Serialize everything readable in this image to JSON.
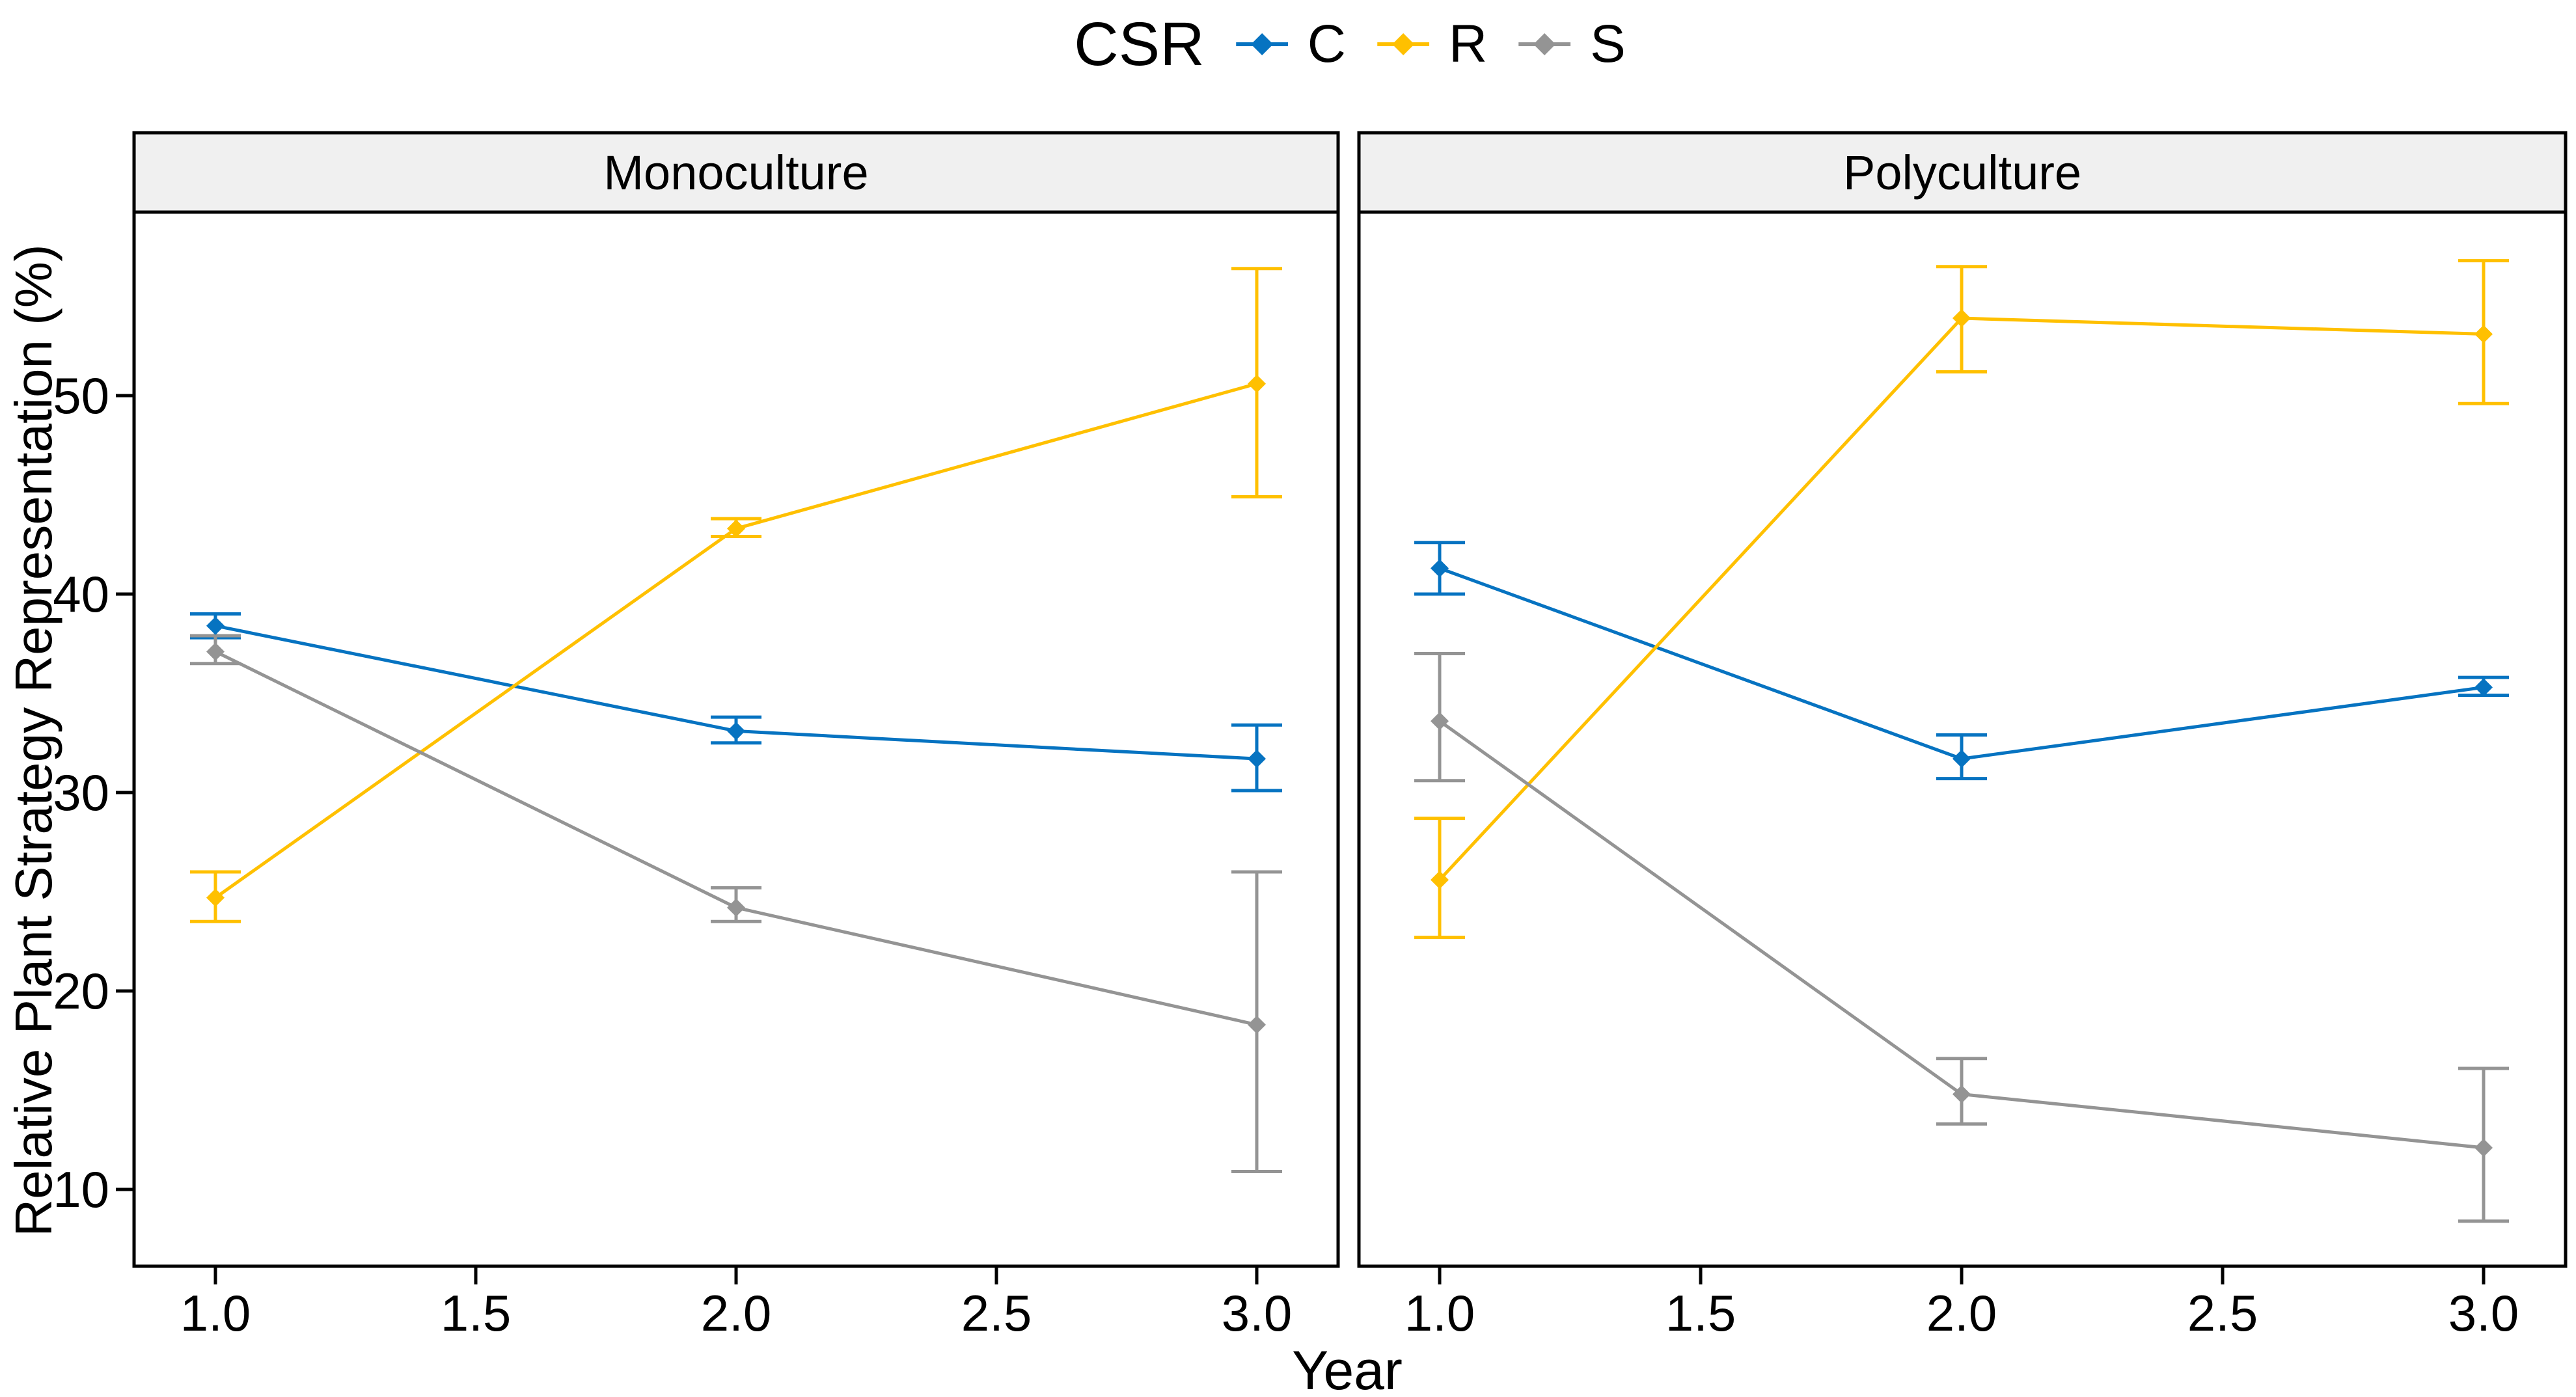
{
  "legend": {
    "title": "CSR",
    "position": "top"
  },
  "chart_data": {
    "type": "line",
    "title": "",
    "xlabel": "Year",
    "ylabel": "Relative Plant Strategy Representation (%)",
    "x": [
      1,
      2,
      3
    ],
    "x_tick_labels": [
      "1.0",
      "1.5",
      "2.0",
      "2.5",
      "3.0"
    ],
    "y_tick_labels": [
      "10",
      "20",
      "30",
      "40",
      "50"
    ],
    "xlim": [
      0.84,
      3.16
    ],
    "ylim": [
      6,
      59.3
    ],
    "grid": false,
    "legend_title": "CSR",
    "legend_position": "top",
    "point_shape": "diamond",
    "error_bars": "confidence interval caps",
    "facets": [
      {
        "name": "Monoculture",
        "series": [
          {
            "name": "C",
            "color": "#0673C1",
            "values": [
              38.4,
              33.1,
              31.7
            ],
            "ci_low": [
              37.8,
              32.5,
              30.1
            ],
            "ci_high": [
              39.0,
              33.8,
              33.4
            ]
          },
          {
            "name": "R",
            "color": "#FFC000",
            "values": [
              24.7,
              43.3,
              50.6
            ],
            "ci_low": [
              23.5,
              42.9,
              44.9
            ],
            "ci_high": [
              26.0,
              43.8,
              56.4
            ]
          },
          {
            "name": "S",
            "color": "#949494",
            "values": [
              37.1,
              24.2,
              18.3
            ],
            "ci_low": [
              36.5,
              23.5,
              10.9
            ],
            "ci_high": [
              37.9,
              25.2,
              26.0
            ]
          }
        ]
      },
      {
        "name": "Polyculture",
        "series": [
          {
            "name": "C",
            "color": "#0673C1",
            "values": [
              41.3,
              31.7,
              35.3
            ],
            "ci_low": [
              40.0,
              30.7,
              34.9
            ],
            "ci_high": [
              42.6,
              32.9,
              35.8
            ]
          },
          {
            "name": "R",
            "color": "#FFC000",
            "values": [
              25.6,
              53.9,
              53.1
            ],
            "ci_low": [
              22.7,
              51.2,
              49.6
            ],
            "ci_high": [
              28.7,
              56.5,
              56.8
            ]
          },
          {
            "name": "S",
            "color": "#949494",
            "values": [
              33.6,
              14.8,
              12.1
            ],
            "ci_low": [
              30.6,
              13.3,
              8.4
            ],
            "ci_high": [
              37.0,
              16.6,
              16.1
            ]
          }
        ]
      }
    ]
  },
  "colors": {
    "c_blue": "#0673C1",
    "r_yellow": "#FFC000",
    "s_gray": "#949494",
    "strip_fill": "#F0F0F0",
    "panel_border": "#000000",
    "background": "#FFFFFF"
  }
}
